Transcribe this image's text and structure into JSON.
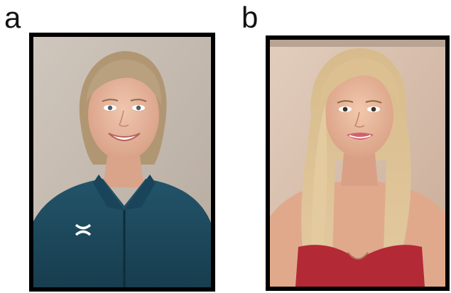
{
  "panels": [
    {
      "label": "a",
      "jacket_logo": "UA"
    },
    {
      "label": "b"
    }
  ],
  "colors": {
    "frame": "#000000",
    "background": "#ffffff",
    "wall_a": "#c9bfb6",
    "wall_b": "#d8c2b2",
    "jacket_a": "#1e4a5c",
    "top_b": "#b42a34",
    "skin": "#e6b59e",
    "hair_a": "#b59a78",
    "hair_b": "#d9bc8c"
  }
}
